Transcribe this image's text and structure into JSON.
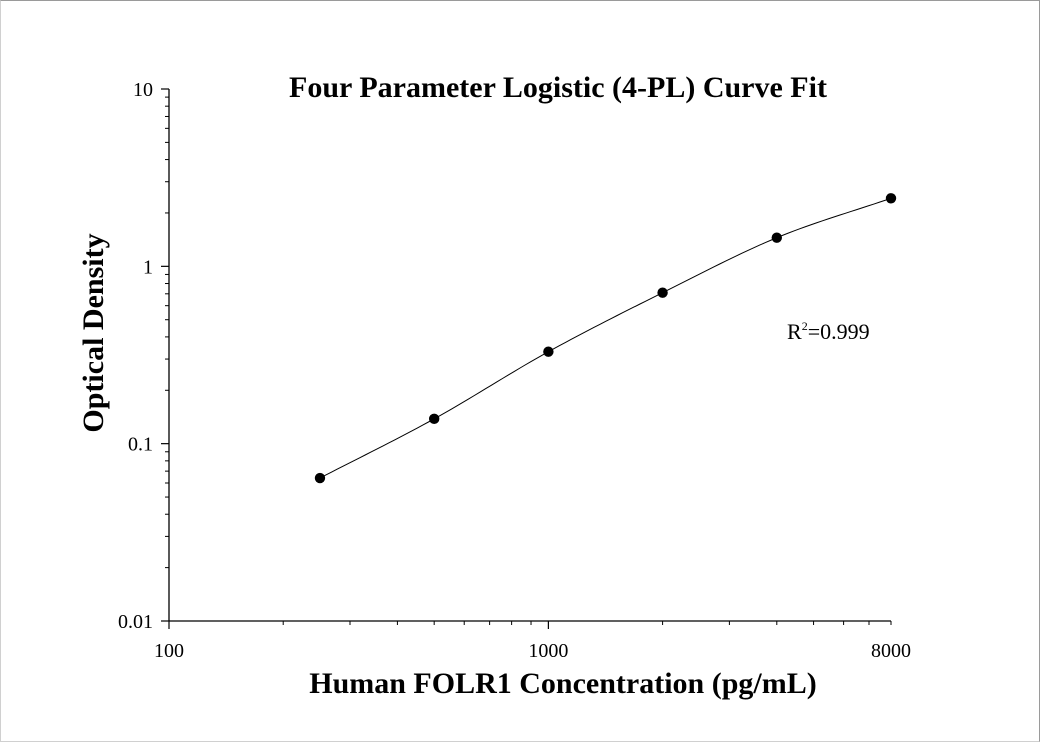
{
  "chart_data": {
    "type": "scatter",
    "title": "Four Parameter Logistic (4-PL) Curve Fit",
    "xlabel": "Human FOLR1 Concentration (pg/mL)",
    "ylabel": "Optical Density",
    "x_scale": "log",
    "y_scale": "log",
    "xlim": [
      100,
      8000
    ],
    "ylim": [
      0.01,
      10
    ],
    "x_ticks": [
      {
        "value": 100,
        "label": "100"
      },
      {
        "value": 1000,
        "label": "1000"
      },
      {
        "value": 8000,
        "label": "8000"
      }
    ],
    "y_ticks": [
      {
        "value": 0.01,
        "label": "0.01"
      },
      {
        "value": 0.1,
        "label": "0.1"
      },
      {
        "value": 1,
        "label": "1"
      },
      {
        "value": 10,
        "label": "10"
      }
    ],
    "grid": false,
    "legend": "none",
    "series": [
      {
        "x": [
          250,
          500,
          1000,
          2000,
          4000,
          8000
        ],
        "y": [
          0.064,
          0.138,
          0.33,
          0.71,
          1.45,
          2.42
        ],
        "marker": "circle",
        "color": "#000000"
      }
    ],
    "fit_curve": {
      "model": "4-PL",
      "color": "#000000"
    },
    "annotations": [
      {
        "text_base": "R",
        "text_sup": "2",
        "text_rest": "=0.999"
      }
    ]
  }
}
